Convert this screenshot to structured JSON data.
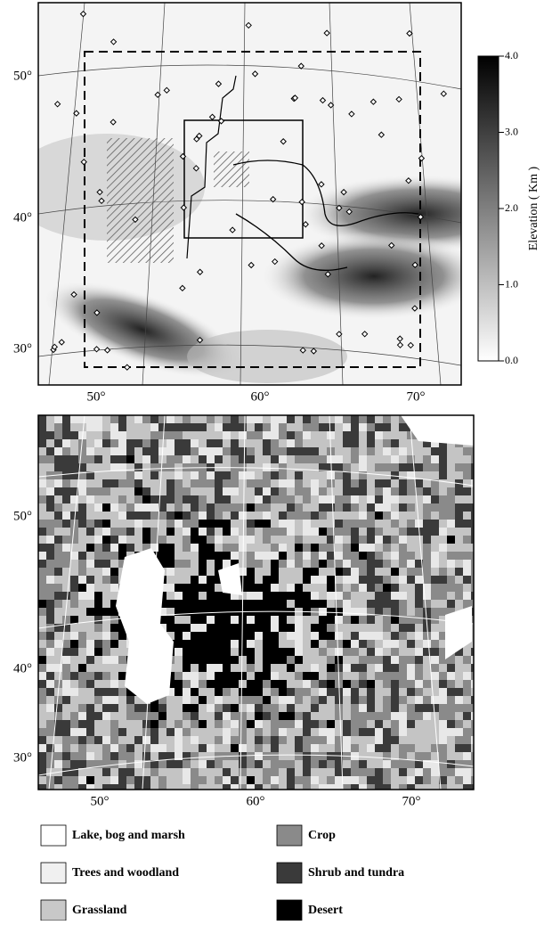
{
  "top_map": {
    "lat_labels": [
      "50°",
      "40°",
      "30°"
    ],
    "lon_labels": [
      "50°",
      "60°",
      "70°"
    ],
    "colorbar": {
      "title": "Elevation ( Km )",
      "ticks": [
        "4.0",
        "3.0",
        "2.0",
        "1.0",
        "0.0"
      ]
    }
  },
  "bottom_map": {
    "lat_labels": [
      "50°",
      "40°",
      "30°"
    ],
    "lon_labels": [
      "50°",
      "60°",
      "70°"
    ]
  },
  "legend": {
    "items": [
      "Lake, bog and marsh",
      "Trees and woodland",
      "Grassland",
      "Crop",
      "Shrub and tundra",
      "Desert"
    ]
  }
}
